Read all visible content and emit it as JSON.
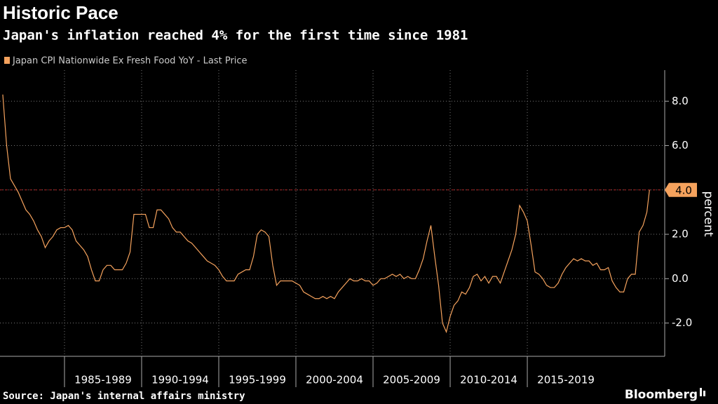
{
  "chart_data": {
    "type": "line",
    "title": "Historic Pace",
    "subtitle": "Japan's inflation reached 4% for the first time since 1981",
    "y_label": "percent",
    "source": "Source: Japan's internal affairs ministry",
    "brand": "Bloomberg",
    "grid": true,
    "x": [
      1981,
      1981.25,
      1981.5,
      1981.75,
      1982,
      1982.25,
      1982.5,
      1982.75,
      1983,
      1983.25,
      1983.5,
      1983.75,
      1984,
      1984.25,
      1984.5,
      1984.75,
      1985,
      1985.25,
      1985.5,
      1985.75,
      1986,
      1986.25,
      1986.5,
      1986.75,
      1987,
      1987.25,
      1987.5,
      1987.75,
      1988,
      1988.25,
      1988.5,
      1988.75,
      1989,
      1989.25,
      1989.5,
      1989.75,
      1990,
      1990.25,
      1990.5,
      1990.75,
      1991,
      1991.25,
      1991.5,
      1991.75,
      1992,
      1992.25,
      1992.5,
      1992.75,
      1993,
      1993.25,
      1993.5,
      1993.75,
      1994,
      1994.25,
      1994.5,
      1994.75,
      1995,
      1995.25,
      1995.5,
      1995.75,
      1996,
      1996.25,
      1996.5,
      1996.75,
      1997,
      1997.25,
      1997.5,
      1997.75,
      1998,
      1998.25,
      1998.5,
      1998.75,
      1999,
      1999.25,
      1999.5,
      1999.75,
      2000,
      2000.25,
      2000.5,
      2000.75,
      2001,
      2001.25,
      2001.5,
      2001.75,
      2002,
      2002.25,
      2002.5,
      2002.75,
      2003,
      2003.25,
      2003.5,
      2003.75,
      2004,
      2004.25,
      2004.5,
      2004.75,
      2005,
      2005.25,
      2005.5,
      2005.75,
      2006,
      2006.25,
      2006.5,
      2006.75,
      2007,
      2007.25,
      2007.5,
      2007.75,
      2008,
      2008.25,
      2008.5,
      2008.75,
      2009,
      2009.25,
      2009.5,
      2009.75,
      2010,
      2010.25,
      2010.5,
      2010.75,
      2011,
      2011.25,
      2011.5,
      2011.75,
      2012,
      2012.25,
      2012.5,
      2012.75,
      2013,
      2013.25,
      2013.5,
      2013.75,
      2014,
      2014.25,
      2014.5,
      2014.75,
      2015,
      2015.25,
      2015.5,
      2015.75,
      2016,
      2016.25,
      2016.5,
      2016.75,
      2017,
      2017.25,
      2017.5,
      2017.75,
      2018,
      2018.25,
      2018.5,
      2018.75,
      2019,
      2019.25,
      2019.5,
      2019.75,
      2020,
      2020.25,
      2020.5,
      2020.75,
      2021,
      2021.25,
      2021.5,
      2021.75,
      2022,
      2022.25,
      2022.5,
      2022.75,
      2022.92
    ],
    "series": [
      {
        "name": "Japan CPI Nationwide Ex Fresh Food YoY - Last Price",
        "color": "#f5a25d",
        "values": [
          8.3,
          6.0,
          4.5,
          4.2,
          3.9,
          3.5,
          3.1,
          2.9,
          2.6,
          2.2,
          1.9,
          1.4,
          1.7,
          1.9,
          2.2,
          2.3,
          2.3,
          2.4,
          2.2,
          1.7,
          1.5,
          1.3,
          1.0,
          0.4,
          -0.1,
          -0.1,
          0.4,
          0.6,
          0.6,
          0.4,
          0.4,
          0.4,
          0.7,
          1.2,
          2.9,
          2.9,
          2.9,
          2.9,
          2.3,
          2.3,
          3.1,
          3.1,
          2.9,
          2.7,
          2.3,
          2.1,
          2.1,
          1.9,
          1.7,
          1.6,
          1.4,
          1.2,
          1.0,
          0.8,
          0.7,
          0.6,
          0.4,
          0.1,
          -0.1,
          -0.1,
          -0.1,
          0.2,
          0.3,
          0.4,
          0.4,
          1.0,
          2.0,
          2.2,
          2.1,
          1.9,
          0.6,
          -0.3,
          -0.1,
          -0.1,
          -0.1,
          -0.1,
          -0.2,
          -0.3,
          -0.6,
          -0.7,
          -0.8,
          -0.9,
          -0.9,
          -0.8,
          -0.9,
          -0.8,
          -0.9,
          -0.6,
          -0.4,
          -0.2,
          0.0,
          -0.1,
          -0.1,
          0.0,
          -0.1,
          -0.1,
          -0.3,
          -0.2,
          0.0,
          0.0,
          0.1,
          0.2,
          0.1,
          0.2,
          0.0,
          0.1,
          0.0,
          0.0,
          0.4,
          0.9,
          1.7,
          2.4,
          1.0,
          -0.3,
          -2.0,
          -2.4,
          -1.7,
          -1.2,
          -1.0,
          -0.6,
          -0.7,
          -0.4,
          0.1,
          0.2,
          -0.1,
          0.1,
          -0.2,
          0.1,
          0.1,
          -0.2,
          0.3,
          0.8,
          1.3,
          2.0,
          3.3,
          3.0,
          2.6,
          1.5,
          0.3,
          0.2,
          0.0,
          -0.3,
          -0.4,
          -0.4,
          -0.2,
          0.2,
          0.5,
          0.7,
          0.9,
          0.8,
          0.9,
          0.8,
          0.8,
          0.6,
          0.7,
          0.4,
          0.4,
          0.5,
          -0.1,
          -0.4,
          -0.6,
          -0.6,
          0.0,
          0.2,
          0.2,
          2.1,
          2.4,
          3.0,
          4.0
        ]
      }
    ],
    "last_price": {
      "value": 4,
      "label": "4.0"
    },
    "xlim": [
      1980.82,
      2023.77
    ],
    "xticks": [
      {
        "value": 1985,
        "label": "1985-1989"
      },
      {
        "value": 1990,
        "label": "1990-1994"
      },
      {
        "value": 1995,
        "label": "1995-1999"
      },
      {
        "value": 2000,
        "label": "2000-2004"
      },
      {
        "value": 2005,
        "label": "2005-2009"
      },
      {
        "value": 2010,
        "label": "2010-2014"
      },
      {
        "value": 2015,
        "label": "2015-2019"
      }
    ],
    "ylim": [
      -3.5,
      9.4
    ],
    "yticks": [
      {
        "value": -2,
        "label": "-2.0"
      },
      {
        "value": 0,
        "label": "0.0"
      },
      {
        "value": 2,
        "label": "2.0"
      },
      {
        "value": 4,
        "label": "4.0"
      },
      {
        "value": 6,
        "label": "6.0"
      },
      {
        "value": 8,
        "label": "8.0"
      }
    ]
  }
}
